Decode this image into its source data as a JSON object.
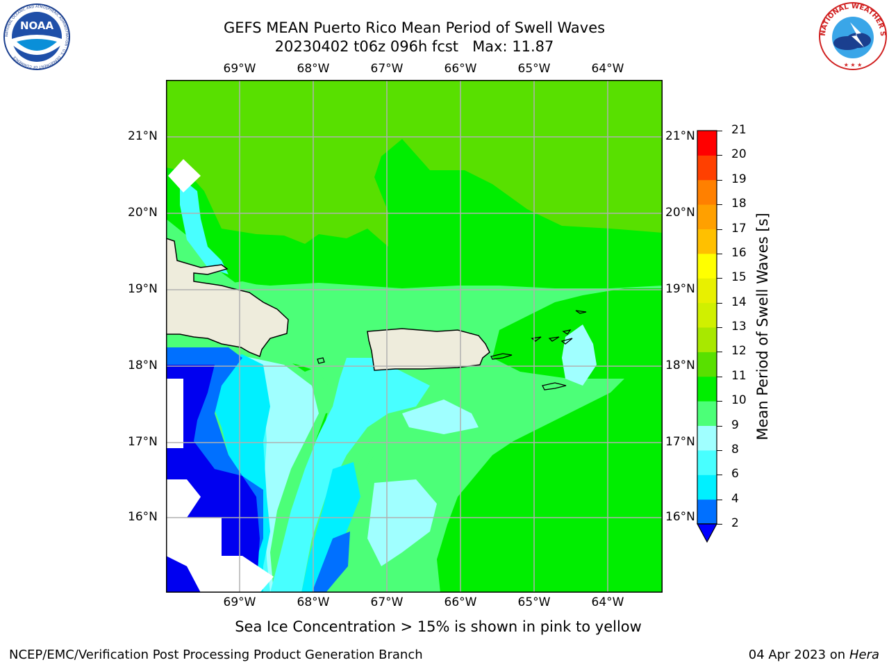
{
  "header": {
    "title_line1": "GEFS MEAN Puerto Rico Mean Period of Swell Waves",
    "title_line2": "20230402 t06z 096h fcst   Max: 11.87"
  },
  "logos": {
    "noaa": {
      "text": "NOAA",
      "ring_text": "NATIONAL OCEANIC AND ATMOSPHERIC ADMINISTRATION · U.S. DEPARTMENT OF COMMERCE"
    },
    "nws": {
      "ring_text": "NATIONAL WEATHER SERVICE"
    }
  },
  "map": {
    "lon_labels": [
      "69°W",
      "68°W",
      "67°W",
      "66°W",
      "65°W",
      "64°W"
    ],
    "lat_labels": [
      "21°N",
      "20°N",
      "19°N",
      "18°N",
      "17°N",
      "16°N"
    ],
    "colors": {
      "land": "#eeecdc",
      "grid": "#b0b0b0"
    }
  },
  "colorbar": {
    "label": "Mean Period of Swell Waves [s]",
    "tick_labels": [
      "2",
      "4",
      "6",
      "8",
      "9",
      "10",
      "11",
      "12",
      "13",
      "14",
      "15",
      "16",
      "17",
      "18",
      "19",
      "20",
      "21"
    ],
    "colors": [
      "#0000f0",
      "#0070ff",
      "#00f0ff",
      "#48ffff",
      "#a0ffff",
      "#4cff78",
      "#00ee00",
      "#58e000",
      "#a8e800",
      "#d0f000",
      "#e8f000",
      "#ffff00",
      "#ffc000",
      "#ffa000",
      "#ff8000",
      "#ff4000",
      "#ff0000"
    ],
    "extend_color": "#0000ff"
  },
  "caption": "Sea Ice Concentration > 15% is shown in pink to yellow",
  "footer": {
    "left": "NCEP/EMC/Verification Post Processing Product Generation Branch",
    "date": "04 Apr 2023 on ",
    "machine": "Hera"
  }
}
